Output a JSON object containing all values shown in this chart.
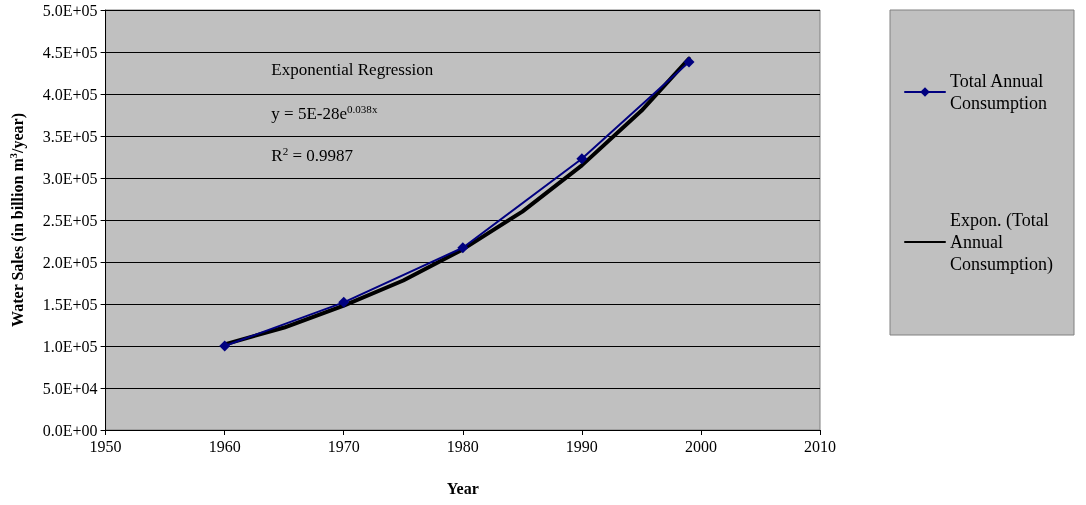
{
  "chart_data": {
    "type": "line",
    "xlabel": "Year",
    "ylabel": "Water Sales (in billion m$^{3}$/year)",
    "annotations": [
      "Exponential Regression",
      "y = 5E-28e$^{0.038x}$",
      "R$^{2}$ = 0.9987"
    ],
    "x": [
      1960,
      1970,
      1980,
      1990,
      1999
    ],
    "series": [
      {
        "name": "Total Annual Consumption",
        "color": "#000080",
        "marker": "diamond",
        "values": [
          100000,
          152000,
          217000,
          323000,
          438000
        ]
      },
      {
        "name": "Expon. (Total Annual Consumption)",
        "color": "#000000",
        "marker": "none",
        "x": [
          1960,
          1965,
          1970,
          1975,
          1980,
          1985,
          1990,
          1995,
          1999
        ],
        "values": [
          102000,
          122000,
          148000,
          178000,
          215000,
          260000,
          315000,
          380000,
          442000
        ]
      }
    ],
    "xlim": [
      1950,
      2010
    ],
    "xticks": [
      1950,
      1960,
      1970,
      1980,
      1990,
      2000,
      2010
    ],
    "ylim": [
      0,
      500000
    ],
    "yticks": [
      {
        "value": 0,
        "label": "0.0E+00"
      },
      {
        "value": 50000,
        "label": "5.0E+04"
      },
      {
        "value": 100000,
        "label": "1.0E+05"
      },
      {
        "value": 150000,
        "label": "1.5E+05"
      },
      {
        "value": 200000,
        "label": "2.0E+05"
      },
      {
        "value": 250000,
        "label": "2.5E+05"
      },
      {
        "value": 300000,
        "label": "3.0E+05"
      },
      {
        "value": 350000,
        "label": "3.5E+05"
      },
      {
        "value": 400000,
        "label": "4.0E+05"
      },
      {
        "value": 450000,
        "label": "4.5E+05"
      },
      {
        "value": 500000,
        "label": "5.0E+05"
      }
    ],
    "grid": "y",
    "legend": "right",
    "line_style": "solid"
  }
}
